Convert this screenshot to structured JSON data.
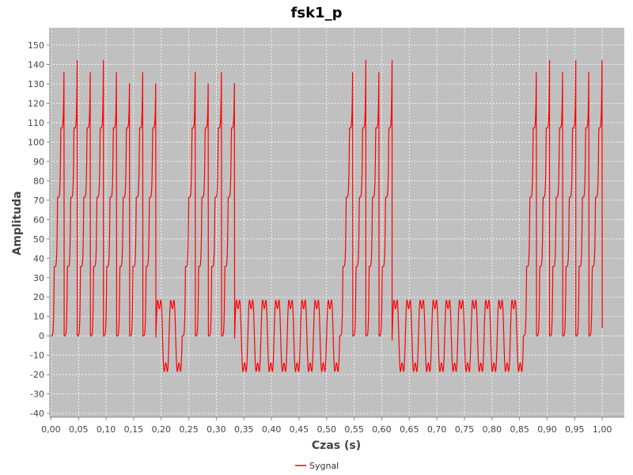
{
  "chart_data": {
    "type": "line",
    "title": "fsk1_p",
    "xlabel": "Czas (s)",
    "ylabel": "Amplituda",
    "xlim": [
      -0.002,
      1.04
    ],
    "ylim": [
      -42,
      159
    ],
    "xticks": [
      "0,00",
      "0,05",
      "0,10",
      "0,15",
      "0,20",
      "0,25",
      "0,30",
      "0,35",
      "0,40",
      "0,45",
      "0,50",
      "0,55",
      "0,60",
      "0,65",
      "0,70",
      "0,75",
      "0,80",
      "0,85",
      "0,90",
      "0,95",
      "1,00"
    ],
    "xtick_values": [
      0,
      0.05,
      0.1,
      0.15,
      0.2,
      0.25,
      0.3,
      0.35,
      0.4,
      0.45,
      0.5,
      0.55,
      0.6,
      0.65,
      0.7,
      0.75,
      0.8,
      0.85,
      0.9,
      0.95,
      1.0
    ],
    "yticks": [
      -40,
      -30,
      -20,
      -10,
      0,
      10,
      20,
      30,
      40,
      50,
      60,
      70,
      80,
      90,
      100,
      110,
      120,
      130,
      140,
      150
    ],
    "grid": true,
    "legend_position": "bottom",
    "series": [
      {
        "name": "Sygnal",
        "color": "#ff0000",
        "bit_pattern": [
          1,
          1,
          1,
          1,
          0,
          1,
          1,
          0,
          0,
          0,
          0,
          1,
          1,
          0,
          0,
          0,
          0,
          0,
          1,
          1,
          1
        ],
        "bit_duration": 0.0476,
        "high_tone_peak": 143,
        "high_tone_steps": [
          0,
          35,
          70,
          107,
          143
        ],
        "low_tone_peaks": [
          23,
          -24
        ]
      }
    ]
  },
  "colors": {
    "plot_background": "#c0c0c0",
    "grid": "#ffffff",
    "signal": "#ff0000"
  }
}
